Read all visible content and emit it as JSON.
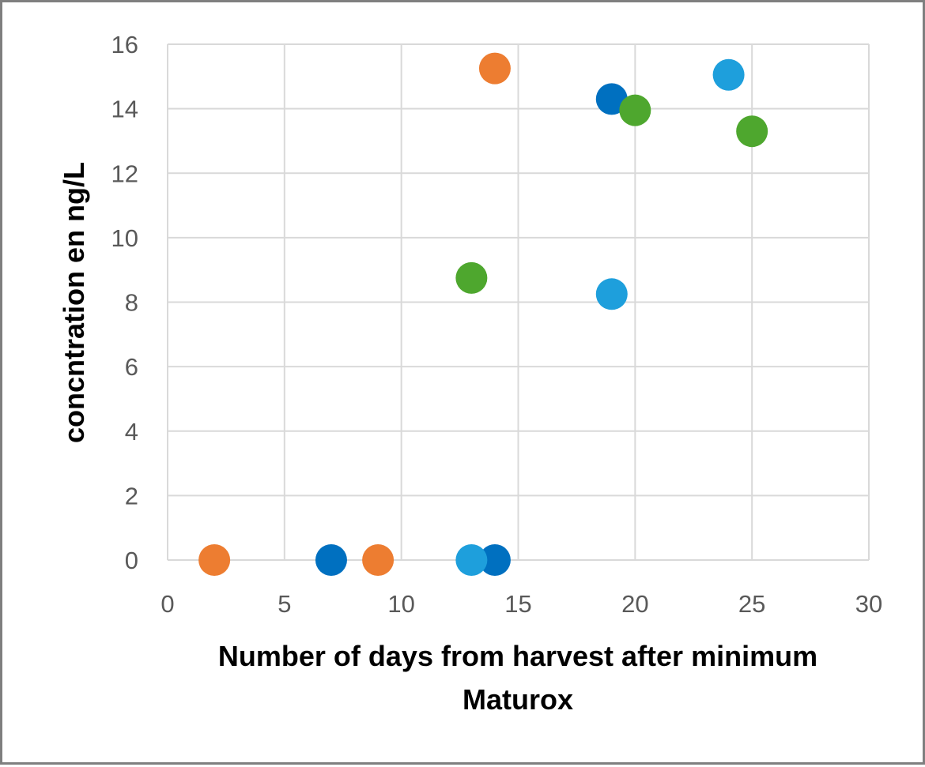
{
  "chart_data": {
    "type": "scatter",
    "title": "",
    "xlabel_lines": [
      "Number of days from harvest after minimum",
      "Maturox"
    ],
    "ylabel": "concntration en ng/L",
    "xlim": [
      0,
      30
    ],
    "ylim": [
      0,
      16
    ],
    "x_ticks": [
      0,
      5,
      10,
      15,
      20,
      25,
      30
    ],
    "y_ticks": [
      0,
      2,
      4,
      6,
      8,
      10,
      12,
      14,
      16
    ],
    "grid": true,
    "legend": "none",
    "series": [
      {
        "color": "#ED7D31",
        "points": [
          {
            "x": 2,
            "y": 0
          },
          {
            "x": 9,
            "y": 0
          },
          {
            "x": 14,
            "y": 15.25
          }
        ]
      },
      {
        "color": "#0070C0",
        "points": [
          {
            "x": 7,
            "y": 0
          },
          {
            "x": 14,
            "y": 0
          },
          {
            "x": 19,
            "y": 14.3
          }
        ]
      },
      {
        "color": "#4EA72E",
        "points": [
          {
            "x": 13,
            "y": 8.75
          },
          {
            "x": 20,
            "y": 13.95
          },
          {
            "x": 25,
            "y": 13.3
          }
        ]
      },
      {
        "color": "#1E9FDC",
        "points": [
          {
            "x": 13,
            "y": 0
          },
          {
            "x": 19,
            "y": 8.25
          },
          {
            "x": 24,
            "y": 15.05
          }
        ]
      }
    ]
  }
}
